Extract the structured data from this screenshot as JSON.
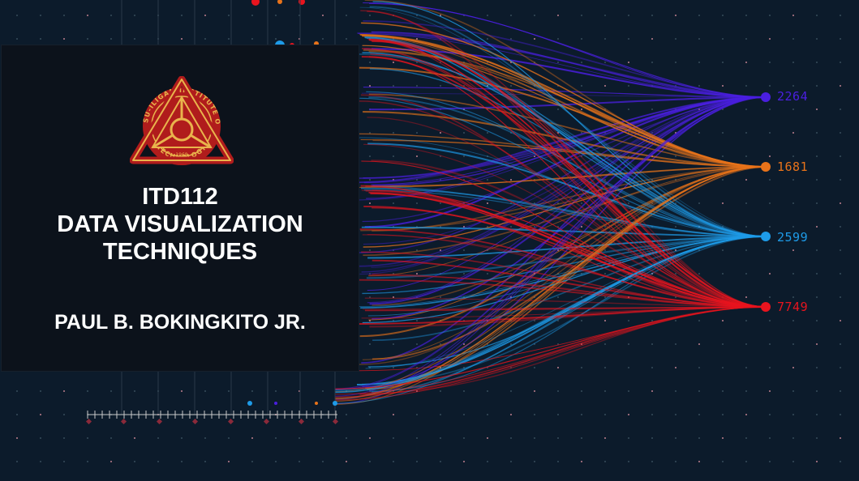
{
  "slide": {
    "course_code": "ITD112",
    "course_title_line1": "DATA VISUALIZATION",
    "course_title_line2": "TECHNIQUES",
    "author": "PAUL B. BOKINGKITO JR."
  },
  "logo": {
    "icon": "institute-seal-icon",
    "text_top": "MSU-ILIGAN INSTITUTE OF",
    "text_bottom": "TECHNOLOGY",
    "year": "1968",
    "colors": {
      "red": "#b01c1c",
      "gold": "#e9b44c"
    }
  },
  "background": {
    "nodes": [
      {
        "value": "2264",
        "color": "#4a1fe0"
      },
      {
        "value": "1681",
        "color": "#e8731a"
      },
      {
        "value": "2599",
        "color": "#1e9be8"
      },
      {
        "value": "7749",
        "color": "#e8141e"
      }
    ],
    "colors": {
      "bg": "#0c1b2b",
      "card": "#0c121b"
    }
  }
}
